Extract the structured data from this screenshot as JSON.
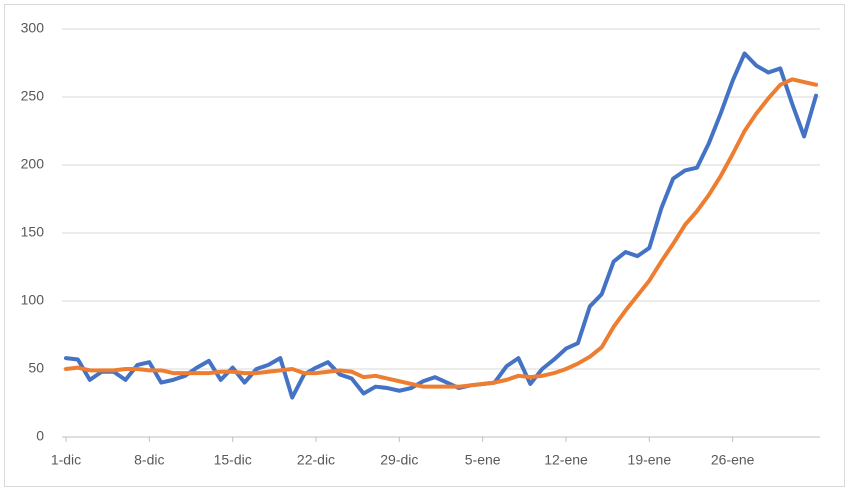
{
  "chart_data": {
    "type": "line",
    "categories": [
      "1-dic",
      null,
      null,
      null,
      null,
      null,
      null,
      "8-dic",
      null,
      null,
      null,
      null,
      null,
      null,
      "15-dic",
      null,
      null,
      null,
      null,
      null,
      null,
      "22-dic",
      null,
      null,
      null,
      null,
      null,
      null,
      "29-dic",
      null,
      null,
      null,
      null,
      null,
      null,
      "5-ene",
      null,
      null,
      null,
      null,
      null,
      null,
      "12-ene",
      null,
      null,
      null,
      null,
      null,
      null,
      "19-ene",
      null,
      null,
      null,
      null,
      null,
      null,
      "26-ene",
      null,
      null,
      null,
      null,
      null,
      null,
      null
    ],
    "series": [
      {
        "color": "#4472c4",
        "values": [
          58,
          57,
          42,
          48,
          48,
          42,
          53,
          55,
          40,
          42,
          45,
          51,
          56,
          42,
          51,
          40,
          50,
          53,
          58,
          29,
          46,
          51,
          55,
          46,
          43,
          32,
          37,
          36,
          34,
          36,
          41,
          44,
          40,
          36,
          38,
          39,
          40,
          52,
          58,
          39,
          50,
          57,
          65,
          69,
          96,
          105,
          129,
          136,
          133,
          139,
          168,
          190,
          196,
          198,
          216,
          238,
          262,
          282,
          273,
          268,
          271,
          245,
          221,
          251
        ]
      },
      {
        "color": "#ed7d31",
        "values": [
          50,
          51,
          49,
          49,
          49,
          50,
          50,
          49,
          49,
          47,
          47,
          47,
          47,
          48,
          48,
          47,
          47,
          48,
          49,
          50,
          47,
          47,
          48,
          49,
          48,
          44,
          45,
          43,
          41,
          39,
          37,
          37,
          37,
          37,
          38,
          39,
          40,
          42,
          45,
          44,
          45,
          47,
          50,
          54,
          59,
          66,
          81,
          93,
          104,
          115,
          129,
          142,
          156,
          166,
          178,
          192,
          208,
          225,
          238,
          249,
          259,
          263,
          261,
          259
        ]
      }
    ],
    "ylim": [
      0,
      300
    ],
    "yticks": [
      0,
      50,
      100,
      150,
      200,
      250,
      300
    ],
    "grid": true
  }
}
